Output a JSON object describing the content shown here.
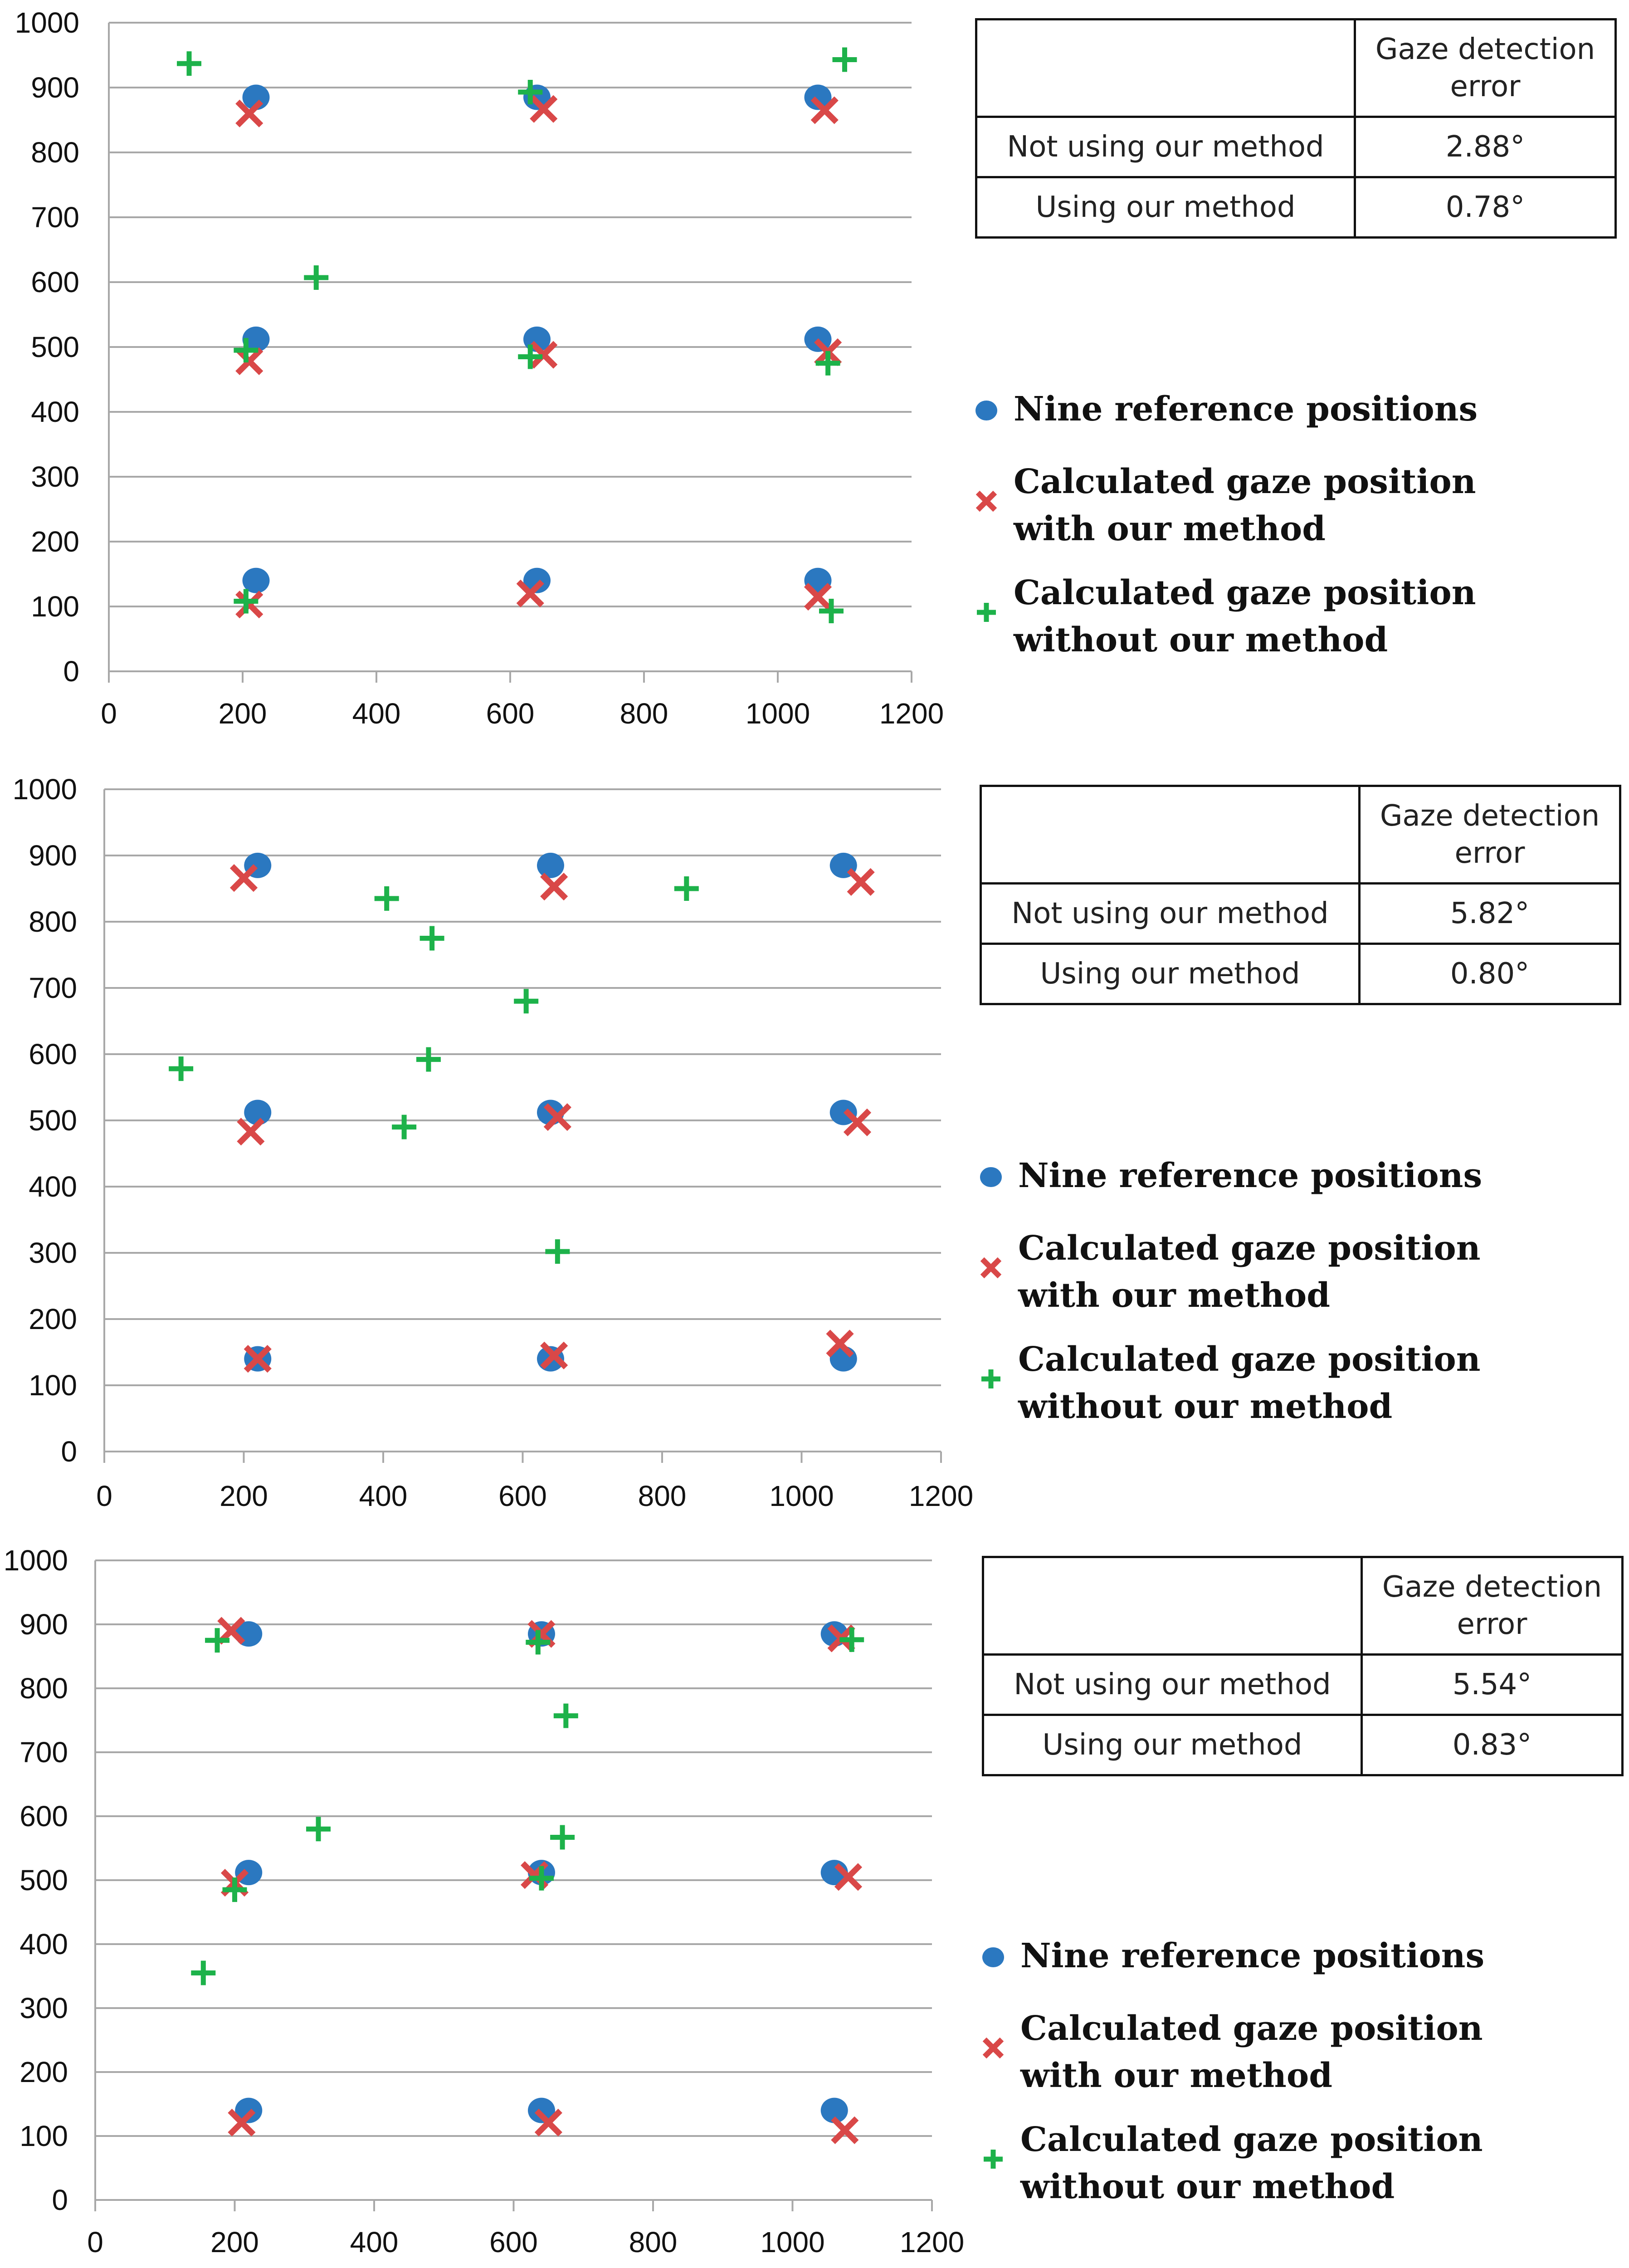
{
  "colors": {
    "reference": "#2b78c0",
    "with_method": "#d94848",
    "without_method": "#1db24a",
    "grid": "#a8a8a8",
    "axis_text": "#111111"
  },
  "legend": {
    "reference": {
      "icon": "circle-marker",
      "label": "Nine reference positions"
    },
    "with_method": {
      "icon": "x-marker",
      "label": "Calculated gaze position\nwith our method"
    },
    "without_method": {
      "icon": "plus-marker",
      "label": "Calculated gaze position\nwithout our method"
    }
  },
  "panels": [
    {
      "table": {
        "header": "Gaze detection\nerror",
        "rows": [
          {
            "label": "Not using our method",
            "value": "2.88°"
          },
          {
            "label": "Using our method",
            "value": "0.78°"
          }
        ]
      },
      "legend": {
        "reference": "Nine reference positions",
        "with_method": "Calculated gaze position\nwith our method",
        "without_method": "Calculated gaze position\nwithout our method"
      }
    },
    {
      "table": {
        "header": "Gaze detection\nerror",
        "rows": [
          {
            "label": "Not using our method",
            "value": "5.82°"
          },
          {
            "label": "Using our method",
            "value": "0.80°"
          }
        ]
      },
      "legend": {
        "reference": "Nine reference positions",
        "with_method": "Calculated gaze position\nwith our method",
        "without_method": "Calculated gaze position\nwithout our method"
      }
    },
    {
      "table": {
        "header": "Gaze detection\nerror",
        "rows": [
          {
            "label": "Not using our method",
            "value": "5.54°"
          },
          {
            "label": "Using our method",
            "value": "0.83°"
          }
        ]
      },
      "legend": {
        "reference": "Nine reference positions",
        "with_method": "Calculated gaze position\nwith our method",
        "without_method": "Calculated gaze position\nwithout our method"
      }
    }
  ],
  "chart_data": [
    {
      "type": "scatter",
      "xlim": [
        0,
        1200
      ],
      "ylim": [
        0,
        1000
      ],
      "xticks": [
        "0",
        "200",
        "400",
        "600",
        "800",
        "1000",
        "1200"
      ],
      "yticks": [
        "0",
        "100",
        "200",
        "300",
        "400",
        "500",
        "600",
        "700",
        "800",
        "900",
        "1000"
      ],
      "grid": "horizontal",
      "series": [
        {
          "name": "Nine reference positions",
          "marker": "circle",
          "points": [
            [
              220,
              885
            ],
            [
              640,
              885
            ],
            [
              1060,
              885
            ],
            [
              220,
              512
            ],
            [
              640,
              512
            ],
            [
              1060,
              512
            ],
            [
              220,
              140
            ],
            [
              640,
              140
            ],
            [
              1060,
              140
            ]
          ]
        },
        {
          "name": "Calculated gaze position with our method",
          "marker": "x",
          "points": [
            [
              210,
              860
            ],
            [
              650,
              867
            ],
            [
              1070,
              865
            ],
            [
              210,
              478
            ],
            [
              650,
              488
            ],
            [
              1075,
              492
            ],
            [
              210,
              103
            ],
            [
              630,
              120
            ],
            [
              1060,
              115
            ]
          ]
        },
        {
          "name": "Calculated gaze position without our method",
          "marker": "plus",
          "points": [
            [
              120,
              937
            ],
            [
              630,
              893
            ],
            [
              1100,
              943
            ],
            [
              310,
              607
            ],
            [
              205,
              495
            ],
            [
              630,
              485
            ],
            [
              1075,
              475
            ],
            [
              205,
              108
            ],
            [
              1080,
              93
            ]
          ]
        }
      ]
    },
    {
      "type": "scatter",
      "xlim": [
        0,
        1200
      ],
      "ylim": [
        0,
        1000
      ],
      "xticks": [
        "0",
        "200",
        "400",
        "600",
        "800",
        "1000",
        "1200"
      ],
      "yticks": [
        "0",
        "100",
        "200",
        "300",
        "400",
        "500",
        "600",
        "700",
        "800",
        "900",
        "1000"
      ],
      "grid": "horizontal",
      "series": [
        {
          "name": "Nine reference positions",
          "marker": "circle",
          "points": [
            [
              220,
              885
            ],
            [
              640,
              885
            ],
            [
              1060,
              885
            ],
            [
              220,
              512
            ],
            [
              640,
              512
            ],
            [
              1060,
              512
            ],
            [
              220,
              140
            ],
            [
              640,
              140
            ],
            [
              1060,
              140
            ]
          ]
        },
        {
          "name": "Calculated gaze position with our method",
          "marker": "x",
          "points": [
            [
              200,
              866
            ],
            [
              645,
              853
            ],
            [
              1085,
              860
            ],
            [
              210,
              483
            ],
            [
              650,
              505
            ],
            [
              1080,
              497
            ],
            [
              220,
              140
            ],
            [
              645,
              145
            ],
            [
              1055,
              163
            ]
          ]
        },
        {
          "name": "Calculated gaze position without our method",
          "marker": "plus",
          "points": [
            [
              405,
              835
            ],
            [
              470,
              775
            ],
            [
              835,
              850
            ],
            [
              605,
              680
            ],
            [
              110,
              578
            ],
            [
              465,
              592
            ],
            [
              430,
              490
            ],
            [
              650,
              302
            ]
          ]
        }
      ]
    },
    {
      "type": "scatter",
      "xlim": [
        0,
        1200
      ],
      "ylim": [
        0,
        1000
      ],
      "xticks": [
        "0",
        "200",
        "400",
        "600",
        "800",
        "1000",
        "1200"
      ],
      "yticks": [
        "0",
        "100",
        "200",
        "300",
        "400",
        "500",
        "600",
        "700",
        "800",
        "900",
        "1000"
      ],
      "grid": "horizontal",
      "series": [
        {
          "name": "Nine reference positions",
          "marker": "circle",
          "points": [
            [
              220,
              885
            ],
            [
              640,
              885
            ],
            [
              1060,
              885
            ],
            [
              220,
              512
            ],
            [
              640,
              512
            ],
            [
              1060,
              512
            ],
            [
              220,
              140
            ],
            [
              640,
              140
            ],
            [
              1060,
              140
            ]
          ]
        },
        {
          "name": "Calculated gaze position with our method",
          "marker": "x",
          "points": [
            [
              195,
              890
            ],
            [
              640,
              885
            ],
            [
              1070,
              878
            ],
            [
              200,
              496
            ],
            [
              630,
              508
            ],
            [
              1080,
              505
            ],
            [
              210,
              121
            ],
            [
              650,
              121
            ],
            [
              1075,
              109
            ]
          ]
        },
        {
          "name": "Calculated gaze position without our method",
          "marker": "plus",
          "points": [
            [
              175,
              875
            ],
            [
              635,
              872
            ],
            [
              1085,
              876
            ],
            [
              675,
              757
            ],
            [
              320,
              580
            ],
            [
              670,
              567
            ],
            [
              200,
              485
            ],
            [
              640,
              503
            ],
            [
              155,
              355
            ]
          ]
        }
      ]
    }
  ]
}
